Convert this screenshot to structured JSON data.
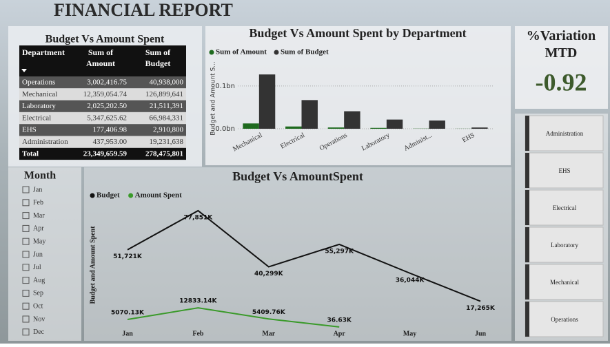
{
  "header": {
    "title": "FINANCIAL REPORT"
  },
  "table": {
    "title": "Budget Vs Amount Spent",
    "columns": [
      "Department",
      "Sum of\nAmount",
      "Sum of\nBudget"
    ],
    "rows": [
      [
        "Operations",
        "3,002,416.75",
        "40,938,000"
      ],
      [
        "Mechanical",
        "12,359,054.74",
        "126,899,641"
      ],
      [
        "Laboratory",
        "2,025,202.50",
        "21,511,391"
      ],
      [
        "Electrical",
        "5,347,625.62",
        "66,984,331"
      ],
      [
        "EHS",
        "177,406.98",
        "2,910,800"
      ],
      [
        "Administration",
        "437,953.00",
        "19,231,638"
      ],
      [
        "Total",
        "23,349,659.59",
        "278,475,801"
      ]
    ]
  },
  "kpi": {
    "title": "%Variation MTD",
    "value": -0.92
  },
  "month_slicer": {
    "title": "Month",
    "items": [
      "Jan",
      "Feb",
      "Mar",
      "Apr",
      "May",
      "Jun",
      "Jul",
      "Aug",
      "Sep",
      "Oct",
      "Nov",
      "Dec"
    ]
  },
  "department_slicer": {
    "items": [
      "Administration",
      "EHS",
      "Electrical",
      "Laboratory",
      "Mechanical",
      "Operations"
    ]
  },
  "chart_data": [
    {
      "type": "bar",
      "title": "Budget Vs Amount Spent by Department",
      "y_label": "Budget and Amount S...",
      "categories": [
        "Mechanical",
        "Electrical",
        "Operations",
        "Laboratory",
        "Administ...",
        "EHS"
      ],
      "series": [
        {
          "name": "Sum of Amount",
          "color": "#1e6a1e",
          "values": [
            0.0124,
            0.0053,
            0.003,
            0.002,
            0.0004,
            0.0002
          ]
        },
        {
          "name": "Sum of Budget",
          "color": "#333333",
          "values": [
            0.1269,
            0.067,
            0.0409,
            0.0215,
            0.0192,
            0.0029
          ]
        }
      ],
      "ylim": [
        0,
        0.14
      ],
      "yticks": [
        {
          "value": 0,
          "label": "0.0bn"
        },
        {
          "value": 0.1,
          "label": "0.1bn"
        }
      ],
      "grid": true
    },
    {
      "type": "line",
      "title": "Budget Vs AmountSpent",
      "y_label": "Budget and Amount Spent",
      "categories": [
        "Jan",
        "Feb",
        "Mar",
        "Apr",
        "May",
        "Jun"
      ],
      "series": [
        {
          "name": "Budget",
          "color": "#111111",
          "values": [
            51721,
            77851,
            40299,
            55297,
            36044,
            17265
          ],
          "value_labels": [
            "51,721K",
            "77,851K",
            "40,299K",
            "55,297K",
            "36,044K",
            "17,265K"
          ]
        },
        {
          "name": "Amount Spent",
          "color": "#3a9a2a",
          "values": [
            5070.13,
            12833.14,
            5409.76,
            36.63,
            null,
            null
          ],
          "value_labels": [
            "5070.13K",
            "12833.14K",
            "5409.76K",
            "36.63K",
            null,
            null
          ]
        }
      ]
    }
  ]
}
